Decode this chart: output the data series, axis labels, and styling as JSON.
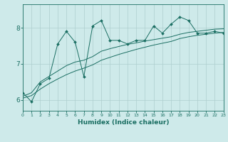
{
  "title": "",
  "xlabel": "Humidex (Indice chaleur)",
  "xlim": [
    0,
    23
  ],
  "ylim": [
    5.7,
    8.65
  ],
  "yticks": [
    6,
    7,
    8
  ],
  "xticks": [
    0,
    1,
    2,
    3,
    4,
    5,
    6,
    7,
    8,
    9,
    10,
    11,
    12,
    13,
    14,
    15,
    16,
    17,
    18,
    19,
    20,
    21,
    22,
    23
  ],
  "background_color": "#ceeaea",
  "grid_color": "#aecece",
  "line_color": "#1a6e62",
  "noisy_series": [
    6.2,
    5.95,
    6.45,
    6.6,
    7.55,
    7.9,
    7.6,
    6.65,
    8.05,
    8.2,
    7.65,
    7.65,
    7.55,
    7.65,
    7.65,
    8.05,
    7.85,
    8.1,
    8.3,
    8.2,
    7.85,
    7.85,
    7.9,
    7.85
  ],
  "trend1": [
    6.1,
    6.2,
    6.5,
    6.65,
    6.8,
    6.95,
    7.05,
    7.1,
    7.2,
    7.35,
    7.42,
    7.48,
    7.54,
    7.58,
    7.63,
    7.67,
    7.71,
    7.75,
    7.82,
    7.87,
    7.9,
    7.93,
    7.96,
    7.97
  ],
  "trend2": [
    6.05,
    6.12,
    6.3,
    6.45,
    6.58,
    6.7,
    6.8,
    6.88,
    6.97,
    7.1,
    7.18,
    7.26,
    7.33,
    7.4,
    7.46,
    7.52,
    7.57,
    7.62,
    7.7,
    7.75,
    7.79,
    7.82,
    7.85,
    7.87
  ]
}
